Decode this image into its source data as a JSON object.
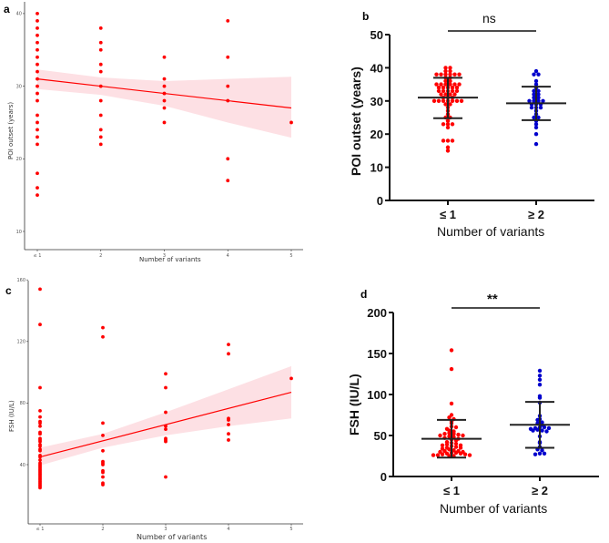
{
  "chart_data": [
    {
      "panel": "a",
      "type": "scatter",
      "title": "",
      "xlabel": "Number of variants",
      "ylabel": "POI outset (years)",
      "x_ticks": [
        "≤ 1",
        "2",
        "3",
        "4",
        "5"
      ],
      "y_ticks": [
        10,
        20,
        30,
        40
      ],
      "ylim": [
        7.5,
        42
      ],
      "grid": false,
      "point_color": "#ff0000",
      "fit_color": "#ff0000",
      "ci_color": "#fde0e4",
      "points": [
        {
          "x": 1,
          "values": [
            40,
            39,
            38,
            37,
            36,
            35,
            34,
            33,
            32,
            31,
            30,
            29,
            28,
            26,
            25,
            24,
            23,
            22,
            18,
            16,
            15
          ]
        },
        {
          "x": 2,
          "values": [
            38,
            36,
            35,
            33,
            32,
            30,
            28,
            26,
            24,
            23,
            22
          ]
        },
        {
          "x": 3,
          "values": [
            34,
            31,
            30,
            29,
            28,
            27,
            25
          ]
        },
        {
          "x": 4,
          "values": [
            39,
            34,
            30,
            28,
            20,
            17
          ]
        },
        {
          "x": 5,
          "values": [
            25
          ]
        }
      ],
      "fit": {
        "x": [
          1,
          5
        ],
        "y": [
          31,
          27
        ]
      },
      "ci": {
        "x": [
          1,
          2,
          3,
          4,
          5
        ],
        "lower": [
          29.6,
          28.8,
          27.3,
          25.0,
          22.9
        ],
        "upper": [
          32.3,
          31.2,
          30.7,
          31.0,
          31.3
        ]
      }
    },
    {
      "panel": "b",
      "type": "scatter",
      "title": "",
      "xlabel": "Number of variants",
      "ylabel": "POI outset (years)",
      "y_ticks": [
        0,
        10,
        20,
        30,
        40,
        50
      ],
      "ylim": [
        0,
        50
      ],
      "grid": false,
      "significance": "ns",
      "series": [
        {
          "name": "≤ 1",
          "color": "#ff0000",
          "mean": 31,
          "sd_low": 24.8,
          "sd_high": 37,
          "values": [
            40,
            40,
            39,
            39,
            38,
            38,
            38,
            38,
            38,
            38,
            37,
            37,
            36,
            36,
            35,
            35,
            35,
            35,
            35,
            35,
            34,
            34,
            34,
            34,
            34,
            33,
            33,
            33,
            33,
            33,
            32,
            32,
            32,
            32,
            31,
            31,
            31,
            30,
            30,
            30,
            30,
            30,
            30,
            30,
            29,
            29,
            28,
            27,
            26,
            25,
            25,
            24,
            23,
            23,
            23,
            22,
            18,
            18,
            18,
            16,
            15
          ]
        },
        {
          "name": "≥ 2",
          "color": "#0000cc",
          "mean": 29.3,
          "sd_low": 24.2,
          "sd_high": 34.3,
          "values": [
            39,
            38,
            38,
            36,
            35,
            34,
            33,
            33,
            32,
            32,
            31,
            31,
            30,
            30,
            30,
            30,
            29,
            29,
            29,
            28,
            28,
            28,
            27,
            26,
            25,
            25,
            24,
            23,
            22,
            20,
            17
          ]
        }
      ]
    },
    {
      "panel": "c",
      "type": "scatter",
      "title": "",
      "xlabel": "Number of variants",
      "ylabel": "FSH (IU/L)",
      "x_ticks": [
        "≤ 1",
        "2",
        "3",
        "4",
        "5"
      ],
      "y_ticks": [
        40,
        80,
        120,
        160
      ],
      "ylim": [
        0,
        160
      ],
      "grid": false,
      "point_color": "#ff0000",
      "fit_color": "#ff0000",
      "ci_color": "#fde0e4",
      "points": [
        {
          "x": 1,
          "values": [
            154,
            131,
            90,
            75,
            71,
            68,
            67,
            65,
            61,
            60,
            57,
            56,
            55,
            53,
            52,
            50,
            49,
            46,
            45,
            43,
            41,
            40,
            39,
            38,
            37,
            36,
            35,
            34,
            33,
            32,
            31,
            30,
            29,
            28,
            27,
            26,
            25
          ]
        },
        {
          "x": 2,
          "values": [
            129,
            123,
            67,
            59,
            49,
            42,
            41,
            40,
            36,
            35,
            32,
            28,
            27
          ]
        },
        {
          "x": 3,
          "values": [
            99,
            90,
            74,
            65,
            63,
            57,
            56,
            55,
            32
          ]
        },
        {
          "x": 4,
          "values": [
            118,
            112,
            70,
            69,
            66,
            60,
            56
          ]
        },
        {
          "x": 5,
          "values": [
            96
          ]
        }
      ],
      "fit": {
        "x": [
          1,
          5
        ],
        "y": [
          45,
          87
        ]
      },
      "ci": {
        "x": [
          1,
          2,
          3,
          4,
          5
        ],
        "lower": [
          39.5,
          51,
          59,
          65,
          70
        ],
        "upper": [
          51,
          60,
          74,
          89,
          104
        ]
      }
    },
    {
      "panel": "d",
      "type": "scatter",
      "title": "",
      "xlabel": "Number of variants",
      "ylabel": "FSH (IU/L)",
      "y_ticks": [
        0,
        50,
        100,
        150,
        200
      ],
      "ylim": [
        0,
        200
      ],
      "grid": false,
      "significance": "**",
      "series": [
        {
          "name": "≤ 1",
          "color": "#ff0000",
          "mean": 46,
          "sd_low": 23,
          "sd_high": 69,
          "values": [
            154,
            131,
            89,
            75,
            72,
            70,
            67,
            65,
            61,
            60,
            58,
            56,
            55,
            53,
            52,
            52,
            51,
            50,
            50,
            49,
            48,
            47,
            46,
            45,
            44,
            42,
            41,
            40,
            39,
            38,
            38,
            37,
            36,
            35,
            35,
            34,
            33,
            32,
            31,
            31,
            30,
            30,
            29,
            29,
            28,
            28,
            27,
            27,
            26,
            26,
            26,
            25,
            25
          ]
        },
        {
          "name": "≥ 2",
          "color": "#0000cc",
          "mean": 63,
          "sd_low": 35,
          "sd_high": 91,
          "values": [
            129,
            123,
            118,
            112,
            98,
            96,
            90,
            74,
            70,
            69,
            66,
            65,
            63,
            60,
            60,
            59,
            59,
            58,
            57,
            56,
            56,
            55,
            49,
            42,
            41,
            36,
            33,
            32,
            28,
            28,
            27
          ]
        }
      ]
    }
  ]
}
